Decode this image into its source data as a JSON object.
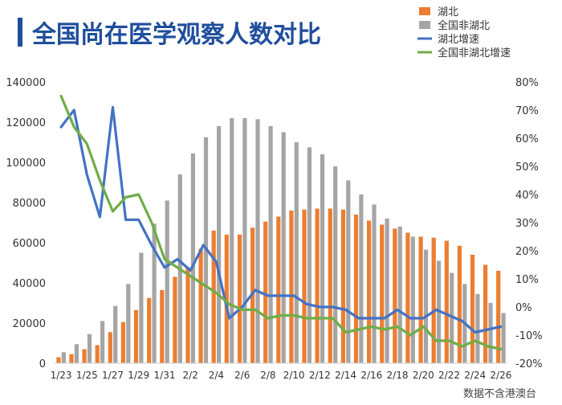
{
  "title": "全国尚在医学观察人数对比",
  "source": "数据不含港澳台",
  "colors": {
    "title": "#1f4e9c",
    "title_bar": "#1f4e9c",
    "hubei": "#ed7d31",
    "non_hubei": "#a5a5a5",
    "hubei_growth": "#4472c4",
    "non_hubei_growth": "#70ad47"
  },
  "legend": [
    {
      "label": "湖北",
      "kind": "bar",
      "color": "#ed7d31"
    },
    {
      "label": "全国非湖北",
      "kind": "bar",
      "color": "#a5a5a5"
    },
    {
      "label": "湖北增速",
      "kind": "line",
      "color": "#4472c4"
    },
    {
      "label": "全国非湖北增速",
      "kind": "line",
      "color": "#70ad47"
    }
  ],
  "chart_data": {
    "type": "bar",
    "title": "全国尚在医学观察人数对比",
    "legend_position": "top-right",
    "grid": false,
    "x_tick_labels": [
      "1/23",
      "1/25",
      "1/27",
      "1/29",
      "1/31",
      "2/2",
      "2/4",
      "2/6",
      "2/8",
      "2/10",
      "2/12",
      "2/14",
      "2/16",
      "2/18",
      "2/20",
      "2/22",
      "2/24",
      "2/26"
    ],
    "categories": [
      "1/23",
      "1/24",
      "1/25",
      "1/26",
      "1/27",
      "1/28",
      "1/29",
      "1/30",
      "1/31",
      "2/1",
      "2/2",
      "2/3",
      "2/4",
      "2/5",
      "2/6",
      "2/7",
      "2/8",
      "2/9",
      "2/10",
      "2/11",
      "2/12",
      "2/13",
      "2/14",
      "2/15",
      "2/16",
      "2/17",
      "2/18",
      "2/19",
      "2/20",
      "2/21",
      "2/22",
      "2/23",
      "2/24",
      "2/25",
      "2/26"
    ],
    "y_left": {
      "min": 0,
      "max": 140000,
      "ticks": [
        0,
        20000,
        40000,
        60000,
        80000,
        100000,
        120000,
        140000
      ]
    },
    "y_right": {
      "min": -20,
      "max": 80,
      "unit": "%",
      "ticks": [
        -20,
        -10,
        0,
        10,
        20,
        30,
        40,
        50,
        60,
        70,
        80
      ]
    },
    "series": [
      {
        "name": "湖北",
        "type": "bar",
        "axis": "left",
        "values": [
          3000,
          4500,
          7000,
          9000,
          15500,
          20500,
          26500,
          32500,
          36500,
          43000,
          47500,
          57000,
          66000,
          64000,
          64000,
          67500,
          70500,
          73000,
          76000,
          76500,
          77000,
          77000,
          76500,
          74000,
          71000,
          69000,
          67000,
          65000,
          63000,
          62500,
          61000,
          58500,
          54000,
          49000,
          46000
        ]
      },
      {
        "name": "全国非湖北",
        "type": "bar",
        "axis": "left",
        "values": [
          5500,
          9500,
          14500,
          21000,
          28500,
          39500,
          55000,
          69500,
          81000,
          94000,
          104500,
          112500,
          118000,
          122000,
          122000,
          121500,
          118000,
          115000,
          110000,
          107500,
          104000,
          98000,
          91000,
          84000,
          79000,
          72000,
          68000,
          63000,
          56500,
          51000,
          45000,
          39500,
          34500,
          30000,
          25000
        ]
      },
      {
        "name": "湖北增速",
        "type": "line",
        "axis": "right",
        "values": [
          64,
          70,
          47,
          32,
          71,
          31,
          31,
          22,
          14,
          17,
          13,
          22,
          16,
          -4,
          0,
          6,
          4,
          4,
          4,
          1,
          0,
          0,
          -1,
          -4,
          -4,
          -4,
          -1,
          -4,
          -4,
          -1,
          -3,
          -5,
          -9,
          -8,
          -7
        ]
      },
      {
        "name": "全国非湖北增速",
        "type": "line",
        "axis": "right",
        "values": [
          75,
          64,
          58,
          45,
          34,
          39,
          40,
          30,
          17,
          14,
          11,
          8,
          5,
          1,
          -1,
          -1,
          -4,
          -3,
          -3,
          -4,
          -4,
          -4,
          -9,
          -8,
          -7,
          -8,
          -7,
          -10,
          -7,
          -12,
          -12,
          -14,
          -12,
          -14,
          -15
        ]
      }
    ]
  }
}
